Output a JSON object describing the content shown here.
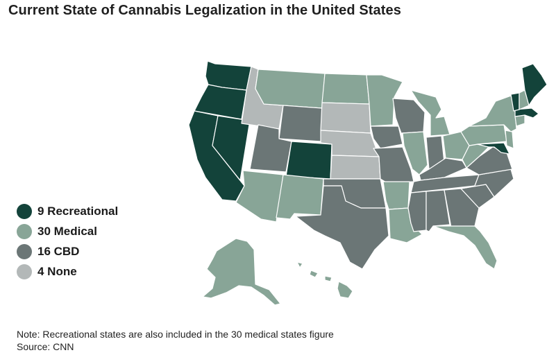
{
  "title": "Current State of Cannabis Legalization in the United States",
  "colors": {
    "recreational": "#13433a",
    "medical": "#88a597",
    "cbd": "#6b7676",
    "none": "#b3b8b8"
  },
  "legend": [
    {
      "key": "recreational",
      "label": "9 Recreational"
    },
    {
      "key": "medical",
      "label": "30 Medical"
    },
    {
      "key": "cbd",
      "label": "16 CBD"
    },
    {
      "key": "none",
      "label": "4 None"
    }
  ],
  "states": [
    {
      "name": "Washington",
      "status": "recreational"
    },
    {
      "name": "Oregon",
      "status": "recreational"
    },
    {
      "name": "California",
      "status": "recreational"
    },
    {
      "name": "Nevada",
      "status": "recreational"
    },
    {
      "name": "Colorado",
      "status": "recreational"
    },
    {
      "name": "Maine",
      "status": "recreational"
    },
    {
      "name": "Vermont",
      "status": "recreational"
    },
    {
      "name": "Massachusetts",
      "status": "recreational"
    },
    {
      "name": "Maryland",
      "status": "recreational"
    },
    {
      "name": "Idaho",
      "status": "none"
    },
    {
      "name": "South Dakota",
      "status": "none"
    },
    {
      "name": "Nebraska",
      "status": "none"
    },
    {
      "name": "Kansas",
      "status": "none"
    },
    {
      "name": "Montana",
      "status": "medical"
    },
    {
      "name": "North Dakota",
      "status": "medical"
    },
    {
      "name": "Minnesota",
      "status": "medical"
    },
    {
      "name": "Arizona",
      "status": "medical"
    },
    {
      "name": "New Mexico",
      "status": "medical"
    },
    {
      "name": "Arkansas",
      "status": "medical"
    },
    {
      "name": "Louisiana",
      "status": "medical"
    },
    {
      "name": "Illinois",
      "status": "medical"
    },
    {
      "name": "Michigan",
      "status": "medical"
    },
    {
      "name": "Ohio",
      "status": "medical"
    },
    {
      "name": "West Virginia",
      "status": "medical"
    },
    {
      "name": "Pennsylvania",
      "status": "medical"
    },
    {
      "name": "New York",
      "status": "medical"
    },
    {
      "name": "New Jersey",
      "status": "medical"
    },
    {
      "name": "New Hampshire",
      "status": "medical"
    },
    {
      "name": "Connecticut",
      "status": "medical"
    },
    {
      "name": "Florida",
      "status": "medical"
    },
    {
      "name": "Alaska",
      "status": "medical"
    },
    {
      "name": "Hawaii",
      "status": "medical"
    },
    {
      "name": "Wyoming",
      "status": "cbd"
    },
    {
      "name": "Utah",
      "status": "cbd"
    },
    {
      "name": "Texas",
      "status": "cbd"
    },
    {
      "name": "Oklahoma",
      "status": "cbd"
    },
    {
      "name": "Missouri",
      "status": "cbd"
    },
    {
      "name": "Iowa",
      "status": "cbd"
    },
    {
      "name": "Wisconsin",
      "status": "cbd"
    },
    {
      "name": "Indiana",
      "status": "cbd"
    },
    {
      "name": "Kentucky",
      "status": "cbd"
    },
    {
      "name": "Tennessee",
      "status": "cbd"
    },
    {
      "name": "Mississippi",
      "status": "cbd"
    },
    {
      "name": "Alabama",
      "status": "cbd"
    },
    {
      "name": "Georgia",
      "status": "cbd"
    },
    {
      "name": "South Carolina",
      "status": "cbd"
    },
    {
      "name": "North Carolina",
      "status": "cbd"
    },
    {
      "name": "Virginia",
      "status": "cbd"
    }
  ],
  "footer": {
    "note": "Note: Recreational states are also included in the 30 medical states figure",
    "source": "Source: CNN"
  }
}
